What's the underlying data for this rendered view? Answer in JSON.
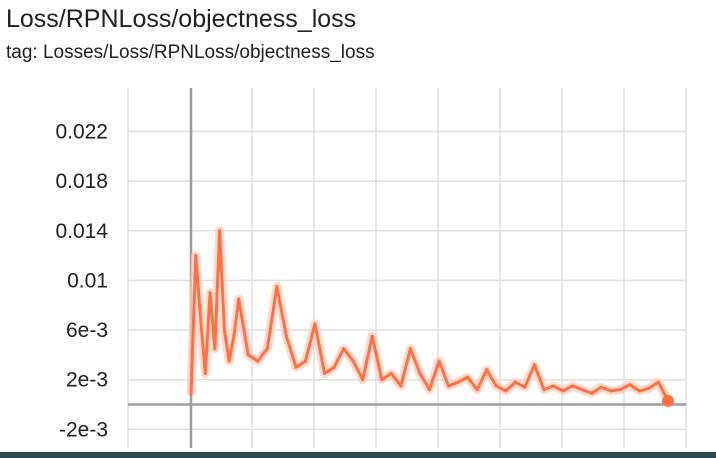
{
  "header": {
    "title": "Loss/RPNLoss/objectness_loss",
    "tag": "tag: Losses/Loss/RPNLoss/objectness_loss"
  },
  "colors": {
    "series": "#ff7043",
    "series_raw": "#ffccbc",
    "grid": "#e0e0e0",
    "axis": "#9e9e9e",
    "bottom_bar": "#2b4a50"
  },
  "chart_data": {
    "type": "line",
    "title": "Loss/RPNLoss/objectness_loss",
    "xlabel": "",
    "ylabel": "",
    "ylim": [
      -0.0035,
      0.0255
    ],
    "y_ticks": [
      -0.002,
      0.002,
      0.006,
      0.01,
      0.014,
      0.018,
      0.022
    ],
    "y_tick_labels": [
      "-2e-3",
      "2e-3",
      "6e-3",
      "0.01",
      "0.014",
      "0.018",
      "0.022"
    ],
    "x_tick_labels": [],
    "x_range": [
      0,
      1
    ],
    "grid": true,
    "series": [
      {
        "x": [
          0.0,
          0.01,
          0.02,
          0.03,
          0.04,
          0.05,
          0.06,
          0.07,
          0.08,
          0.09,
          0.1,
          0.12,
          0.14,
          0.16,
          0.18,
          0.2,
          0.22,
          0.24,
          0.26,
          0.28,
          0.3,
          0.32,
          0.34,
          0.36,
          0.38,
          0.4,
          0.42,
          0.44,
          0.46,
          0.48,
          0.5,
          0.52,
          0.54,
          0.56,
          0.58,
          0.6,
          0.62,
          0.64,
          0.66,
          0.68,
          0.7,
          0.72,
          0.74,
          0.76,
          0.78,
          0.8,
          0.82,
          0.84,
          0.86,
          0.88,
          0.9,
          0.92,
          0.94,
          0.96,
          0.98,
          1.0
        ],
        "y": [
          0.0008,
          0.012,
          0.007,
          0.0025,
          0.009,
          0.0045,
          0.014,
          0.006,
          0.0035,
          0.0055,
          0.0085,
          0.004,
          0.0035,
          0.0045,
          0.0095,
          0.0055,
          0.003,
          0.0035,
          0.0065,
          0.0025,
          0.003,
          0.0045,
          0.0035,
          0.002,
          0.0055,
          0.002,
          0.0025,
          0.0015,
          0.0045,
          0.0025,
          0.0012,
          0.0035,
          0.0015,
          0.0018,
          0.0022,
          0.0012,
          0.0028,
          0.0015,
          0.0011,
          0.0018,
          0.0014,
          0.0032,
          0.0012,
          0.0015,
          0.0011,
          0.0015,
          0.0012,
          0.0009,
          0.0014,
          0.0011,
          0.0012,
          0.0016,
          0.0011,
          0.0013,
          0.0018,
          0.0003
        ]
      }
    ]
  }
}
